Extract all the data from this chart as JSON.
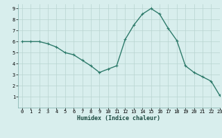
{
  "x": [
    0,
    1,
    2,
    3,
    4,
    5,
    6,
    7,
    8,
    9,
    10,
    11,
    12,
    13,
    14,
    15,
    16,
    17,
    18,
    19,
    20,
    21,
    22,
    23
  ],
  "y": [
    6.0,
    6.0,
    6.0,
    5.8,
    5.5,
    5.0,
    4.8,
    4.3,
    3.8,
    3.2,
    3.5,
    3.8,
    6.2,
    7.5,
    8.5,
    9.0,
    8.5,
    7.2,
    6.1,
    3.8,
    3.2,
    2.8,
    2.4,
    1.1
  ],
  "line_color": "#2d7a6a",
  "marker": "+",
  "marker_size": 3.5,
  "marker_lw": 0.8,
  "bg_color": "#d8eeed",
  "grid_color": "#b8d4d0",
  "xlabel": "Humidex (Indice chaleur)",
  "xlim": [
    -0.5,
    23
  ],
  "ylim": [
    0,
    9.4
  ],
  "yticks": [
    1,
    2,
    3,
    4,
    5,
    6,
    7,
    8,
    9
  ],
  "xticks": [
    0,
    1,
    2,
    3,
    4,
    5,
    6,
    7,
    8,
    9,
    10,
    11,
    12,
    13,
    14,
    15,
    16,
    17,
    18,
    19,
    20,
    21,
    22,
    23
  ],
  "tick_fontsize": 5.0,
  "xlabel_fontsize": 6.0,
  "linewidth": 1.0
}
